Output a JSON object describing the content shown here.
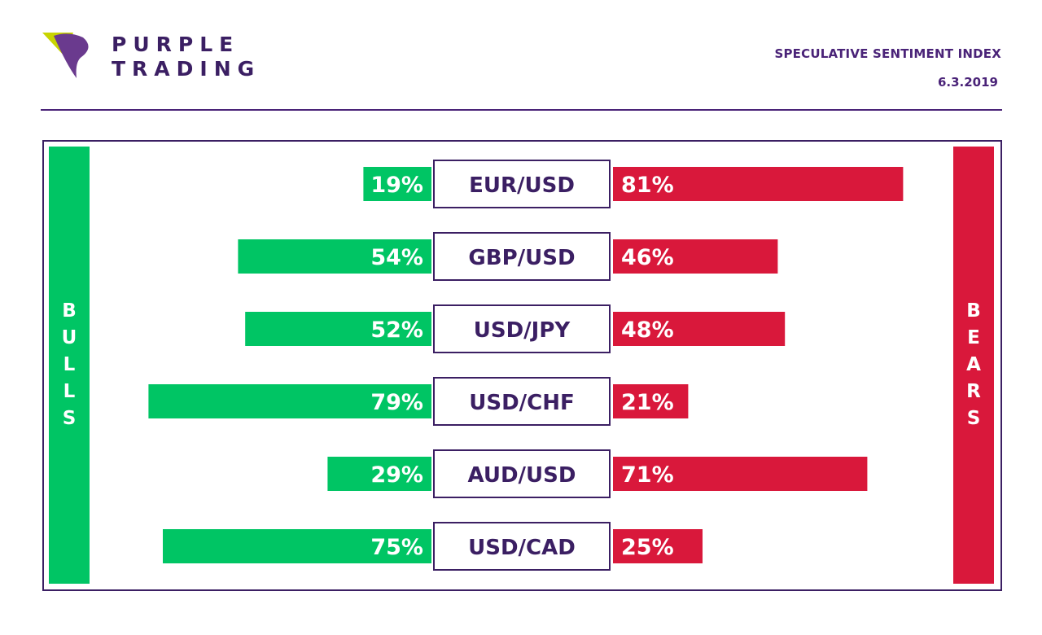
{
  "brand": {
    "line1": "PURPLE",
    "line2": "TRADING",
    "logo_icon": "triangle-logo-icon"
  },
  "header": {
    "title": "SPECULATIVE SENTIMENT INDEX",
    "date": "6.3.2019"
  },
  "side_labels": {
    "left": "BULLS",
    "right": "BEARS"
  },
  "colors": {
    "bull": "#00c564",
    "bear": "#d9183b",
    "purple": "#3b1f63"
  },
  "chart_data": {
    "type": "bar",
    "categories": [
      "EUR/USD",
      "GBP/USD",
      "USD/JPY",
      "USD/CHF",
      "AUD/USD",
      "USD/CAD"
    ],
    "series": [
      {
        "name": "BULLS",
        "values": [
          19,
          54,
          52,
          79,
          29,
          75
        ],
        "labels": [
          "19%",
          "54%",
          "52%",
          "79%",
          "29%",
          "75%"
        ]
      },
      {
        "name": "BEARS",
        "values": [
          81,
          46,
          48,
          21,
          71,
          25
        ],
        "labels": [
          "81%",
          "46%",
          "48%",
          "21%",
          "71%",
          "25%"
        ]
      }
    ]
  }
}
